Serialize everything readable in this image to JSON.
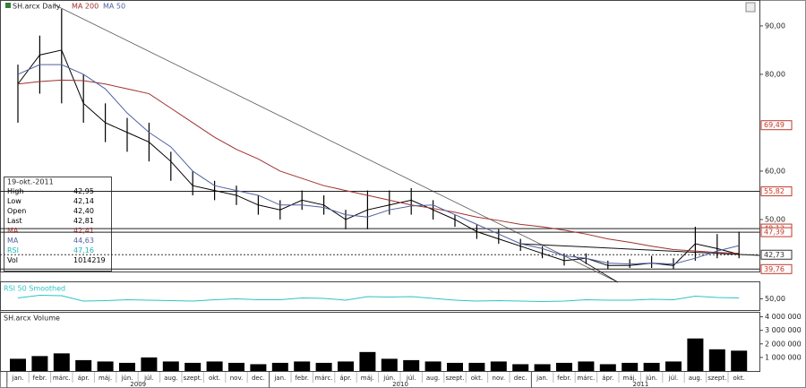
{
  "chart_data": [
    {
      "type": "line",
      "title": "SH.arcx Daily",
      "ylim": [
        39.26,
        94.8
      ],
      "yticks": [
        {
          "value": 50,
          "label": "50,00"
        },
        {
          "value": 60,
          "label": "60,00"
        },
        {
          "value": 80,
          "label": "80,00"
        },
        {
          "value": 90,
          "label": "90,00"
        }
      ],
      "levels": [
        {
          "value": 69.49,
          "label": "69,49",
          "color": "#c0392b",
          "style": "none"
        },
        {
          "value": 55.82,
          "label": "55,82",
          "color": "#c0392b",
          "style": "solid"
        },
        {
          "value": 48.13,
          "label": "48,13",
          "color": "#c0392b",
          "style": "solid"
        },
        {
          "value": 47.39,
          "label": "47,39",
          "color": "#c0392b",
          "style": "solid"
        },
        {
          "value": 42.73,
          "label": "42,73",
          "color": "#333333",
          "style": "dotted"
        },
        {
          "value": 39.76,
          "label": "39,76",
          "color": "#c0392b",
          "style": "solid"
        }
      ],
      "series": [
        {
          "name": "SH.arcx Daily",
          "color": "#000000",
          "values": [
            78,
            84,
            85,
            74,
            70,
            68,
            66,
            62,
            57,
            56,
            55,
            53,
            52,
            54,
            53,
            50,
            52,
            53,
            54,
            52,
            50,
            47.5,
            46,
            44.5,
            43,
            41.5,
            42,
            40.5,
            40.5,
            41,
            40.5,
            45,
            44,
            42.8
          ],
          "high": [
            82,
            88,
            93.5,
            80,
            74,
            71,
            70,
            64,
            60,
            58,
            57,
            55,
            54,
            56,
            55,
            52,
            56,
            56,
            56.5,
            54,
            51,
            49,
            48,
            46,
            44.5,
            43,
            43,
            41.5,
            41.8,
            42.5,
            42,
            48.5,
            47,
            47.5
          ],
          "low": [
            70,
            76,
            74,
            70,
            66,
            64,
            62,
            58,
            55,
            54,
            53,
            51,
            50,
            52,
            51,
            48,
            48,
            51,
            51,
            50,
            48.5,
            46,
            45,
            43.5,
            42,
            40.5,
            40.8,
            39.8,
            40,
            40,
            39.8,
            41.5,
            42,
            42
          ]
        },
        {
          "name": "MA 200",
          "color": "#a03030",
          "values": [
            78,
            78.5,
            78.8,
            78.7,
            78,
            77,
            76,
            73,
            70,
            67,
            64.5,
            62.5,
            60,
            58.5,
            57,
            56,
            55,
            54,
            53,
            52.3,
            51.5,
            50.5,
            49.8,
            49,
            48.5,
            47.8,
            47,
            46,
            45.3,
            44.5,
            43.8,
            43.5,
            43.2,
            43
          ]
        },
        {
          "name": "MA 50",
          "color": "#5060a0",
          "values": [
            80,
            82,
            82,
            80,
            77,
            72,
            68,
            65,
            60,
            57,
            56,
            55,
            53,
            53,
            52.5,
            51,
            50.5,
            52,
            52.8,
            53,
            51,
            49,
            47,
            45,
            44,
            42.5,
            42,
            41,
            40.8,
            41,
            40.8,
            42,
            43.5,
            44.6
          ]
        }
      ],
      "info": {
        "date": "19-okt.-2011",
        "rows": [
          {
            "label": "High",
            "value": "42,95",
            "color": "#000000"
          },
          {
            "label": "Low",
            "value": "42,14",
            "color": "#000000"
          },
          {
            "label": "Open",
            "value": "42,40",
            "color": "#000000"
          },
          {
            "label": "Last",
            "value": "42,81",
            "color": "#000000"
          },
          {
            "label": "MA",
            "value": "42,41",
            "color": "#a03030"
          },
          {
            "label": "MA",
            "value": "44,63",
            "color": "#5060a0"
          },
          {
            "label": "RSI",
            "value": "47,16",
            "color": "#1fb5b5"
          },
          {
            "label": "Vol",
            "value": "1014219",
            "color": "#000000"
          }
        ]
      }
    },
    {
      "type": "line",
      "ylim": [
        25,
        85
      ],
      "yticks": [
        {
          "value": 50,
          "label": "50,00"
        }
      ],
      "series": [
        {
          "name": "RSI 50 Smoothed",
          "color": "#2ec4c4",
          "values": [
            52,
            58,
            57,
            45,
            46,
            48,
            47,
            46,
            45,
            48,
            50,
            48,
            48,
            52,
            51,
            47,
            55,
            54,
            55,
            51,
            47,
            45,
            46,
            45,
            44,
            45,
            48,
            47,
            47,
            49,
            48,
            56,
            53,
            52
          ]
        }
      ]
    },
    {
      "type": "bar",
      "ylim": [
        0,
        4300000
      ],
      "yticks": [
        {
          "value": 1000000,
          "label": "1 000 000"
        },
        {
          "value": 2000000,
          "label": "2 000 000"
        },
        {
          "value": 3000000,
          "label": "3 000 000"
        },
        {
          "value": 4000000,
          "label": "4 000 000"
        }
      ],
      "categories": [
        "jan.",
        "febr.",
        "márc.",
        "ápr.",
        "máj.",
        "jún.",
        "júl.",
        "aug.",
        "szept.",
        "okt.",
        "nov.",
        "dec.",
        "jan.",
        "febr.",
        "márc.",
        "ápr.",
        "máj.",
        "jún.",
        "júl.",
        "aug.",
        "szept.",
        "okt.",
        "nov.",
        "dec.",
        "jan.",
        "febr.",
        "márc.",
        "ápr.",
        "máj.",
        "jún.",
        "júl.",
        "aug.",
        "szept.",
        "okt."
      ],
      "years": [
        "2009",
        "2010",
        "2011"
      ],
      "series": [
        {
          "name": "SH.arcx Volume",
          "color": "#000000",
          "values": [
            900000,
            1100000,
            1300000,
            800000,
            700000,
            600000,
            1000000,
            700000,
            600000,
            700000,
            600000,
            500000,
            600000,
            700000,
            600000,
            700000,
            1400000,
            900000,
            800000,
            700000,
            600000,
            600000,
            700000,
            500000,
            500000,
            600000,
            700000,
            500000,
            600000,
            600000,
            700000,
            2400000,
            1600000,
            1500000
          ]
        }
      ]
    }
  ]
}
